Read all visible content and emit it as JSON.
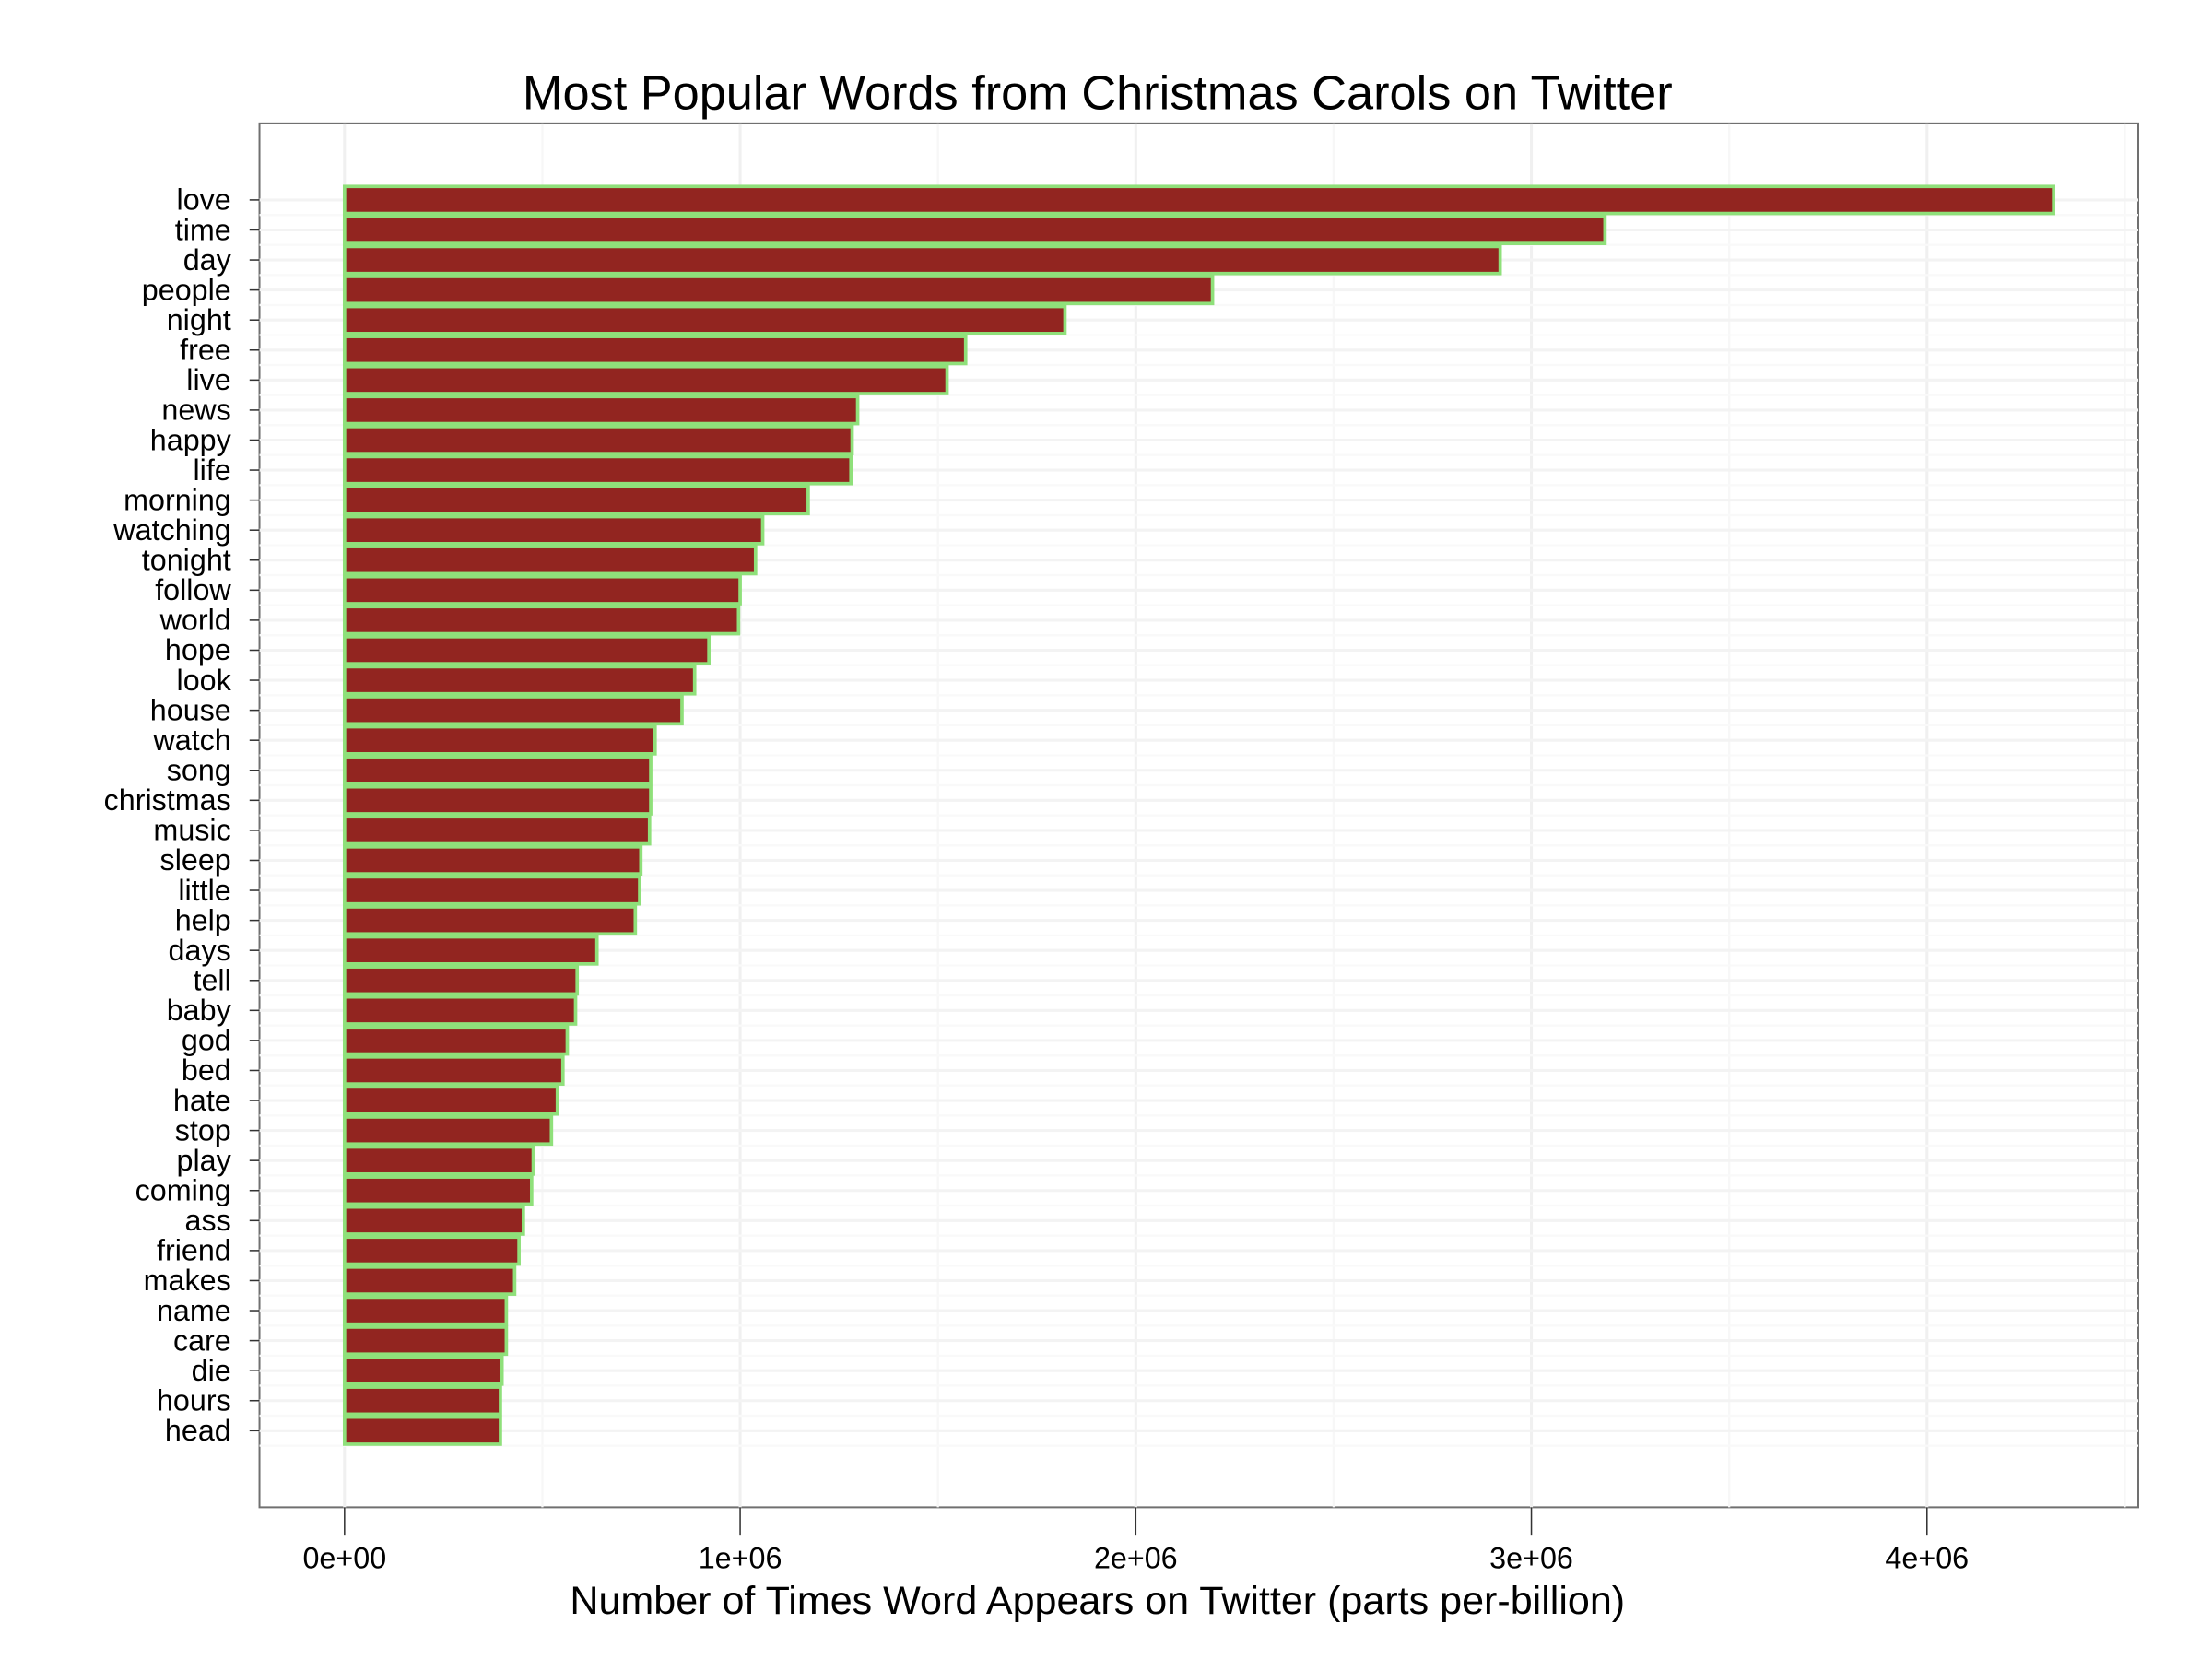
{
  "chart_data": {
    "type": "bar",
    "orientation": "horizontal",
    "title": "Most Popular Words from Christmas Carols on Twitter",
    "xlabel": "Number of Times Word Appears on Twitter (parts per-billion)",
    "ylabel": "",
    "xlim": [
      -215000,
      4534000
    ],
    "xticks": [
      0,
      1000000,
      2000000,
      3000000,
      4000000
    ],
    "xtick_labels": [
      "0e+00",
      "1e+06",
      "2e+06",
      "3e+06",
      "4e+06"
    ],
    "grid": true,
    "colors": {
      "bar_fill": "#922520",
      "bar_edge": "#8fe07a",
      "panel_border": "#707070",
      "grid": "#f2f2f2"
    },
    "categories": [
      "love",
      "time",
      "day",
      "people",
      "night",
      "free",
      "live",
      "news",
      "happy",
      "life",
      "morning",
      "watching",
      "tonight",
      "follow",
      "world",
      "hope",
      "look",
      "house",
      "watch",
      "song",
      "christmas",
      "music",
      "sleep",
      "little",
      "help",
      "days",
      "tell",
      "baby",
      "god",
      "bed",
      "hate",
      "stop",
      "play",
      "coming",
      "ass",
      "friend",
      "makes",
      "name",
      "care",
      "die",
      "hours",
      "head"
    ],
    "values": [
      4320000,
      3186000,
      2921000,
      2194000,
      1821000,
      1570000,
      1523000,
      1297000,
      1283000,
      1280000,
      1172000,
      1057000,
      1039000,
      1000000,
      996000,
      921000,
      885000,
      853000,
      785000,
      774000,
      774000,
      771000,
      749000,
      746000,
      735000,
      638000,
      588000,
      584000,
      563000,
      552000,
      538000,
      523000,
      477000,
      473000,
      452000,
      441000,
      430000,
      409000,
      409000,
      398000,
      394000,
      394000
    ]
  }
}
